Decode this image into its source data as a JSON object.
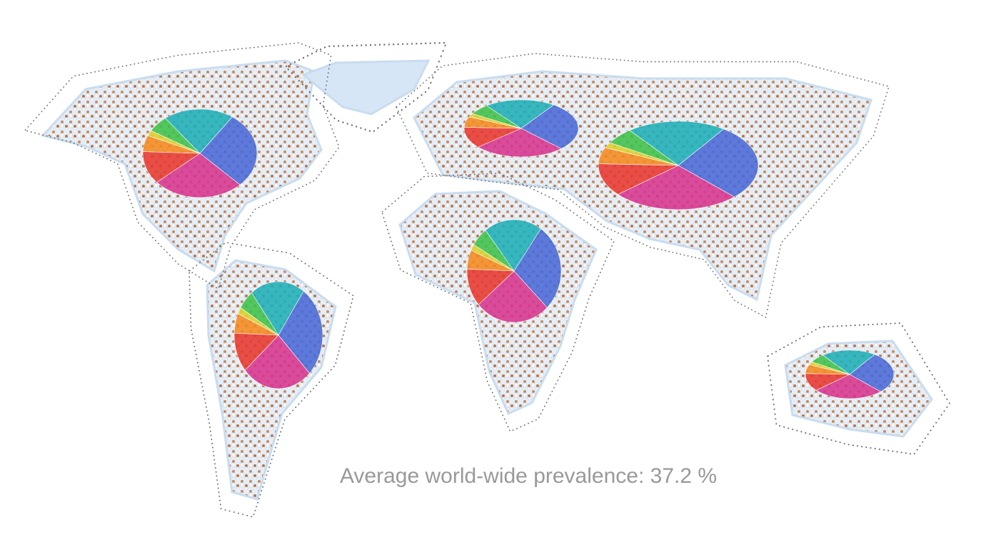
{
  "caption": "Average world-wide prevalence: 37.2 %"
}
